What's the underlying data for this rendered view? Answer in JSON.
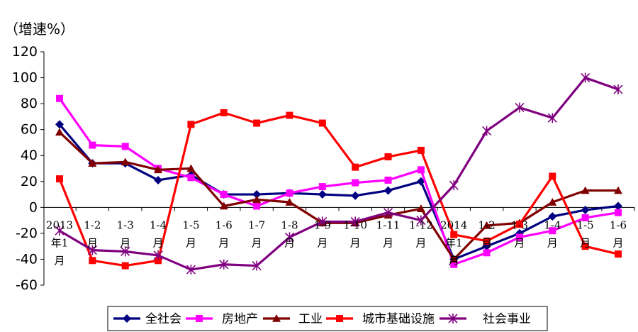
{
  "chart_data": {
    "type": "line",
    "ylabel": "（增速%）",
    "ylim": [
      -60,
      120
    ],
    "yticks": [
      -60,
      -40,
      -20,
      0,
      20,
      40,
      60,
      80,
      100,
      120
    ],
    "grid": false,
    "legend_position": "bottom",
    "categories": [
      [
        "2013",
        "年1",
        "月"
      ],
      [
        "1-2",
        "月"
      ],
      [
        "1-3",
        "月"
      ],
      [
        "1-4",
        "月"
      ],
      [
        "1-5",
        "月"
      ],
      [
        "1-6",
        "月"
      ],
      [
        "1-7",
        "月"
      ],
      [
        "1-8",
        "月"
      ],
      [
        "1-9",
        "月"
      ],
      [
        "1-10",
        "月"
      ],
      [
        "1-11",
        "月"
      ],
      [
        "1-12",
        "月"
      ],
      [
        "2014",
        "年1",
        "月"
      ],
      [
        "1-2",
        "月"
      ],
      [
        "1-3",
        "月"
      ],
      [
        "1-4",
        "月"
      ],
      [
        "1-5",
        "月"
      ],
      [
        "1-6",
        "月"
      ]
    ],
    "series": [
      {
        "name": "全社会",
        "color": "#000080",
        "marker": "diamond",
        "values": [
          64,
          34,
          34,
          21,
          25,
          10,
          10,
          11,
          10,
          9,
          13,
          20,
          -40,
          -30,
          -20,
          -7,
          -2,
          1
        ]
      },
      {
        "name": "房地产",
        "color": "#ff00ff",
        "marker": "square",
        "values": [
          84,
          48,
          47,
          30,
          23,
          10,
          1,
          11,
          16,
          19,
          21,
          29,
          -44,
          -35,
          -23,
          -18,
          -8,
          -4
        ]
      },
      {
        "name": "工业",
        "color": "#800000",
        "marker": "triangle",
        "values": [
          58,
          34,
          35,
          29,
          30,
          1,
          6,
          4,
          -12,
          -12,
          -6,
          -1,
          -40,
          -14,
          -12,
          4,
          13,
          13
        ]
      },
      {
        "name": "城市基础设施",
        "color": "#ff0000",
        "marker": "square",
        "values": [
          22,
          -41,
          -45,
          -41,
          64,
          73,
          65,
          71,
          65,
          31,
          39,
          44,
          -21,
          -26,
          -13,
          24,
          -30,
          -36
        ]
      },
      {
        "name": "社会事业",
        "color": "#800080",
        "marker": "star",
        "values": [
          -18,
          -33,
          -34,
          -37,
          -48,
          -44,
          -45,
          -23,
          -11,
          -11,
          -4,
          -10,
          17,
          59,
          77,
          69,
          100,
          91
        ]
      }
    ]
  }
}
